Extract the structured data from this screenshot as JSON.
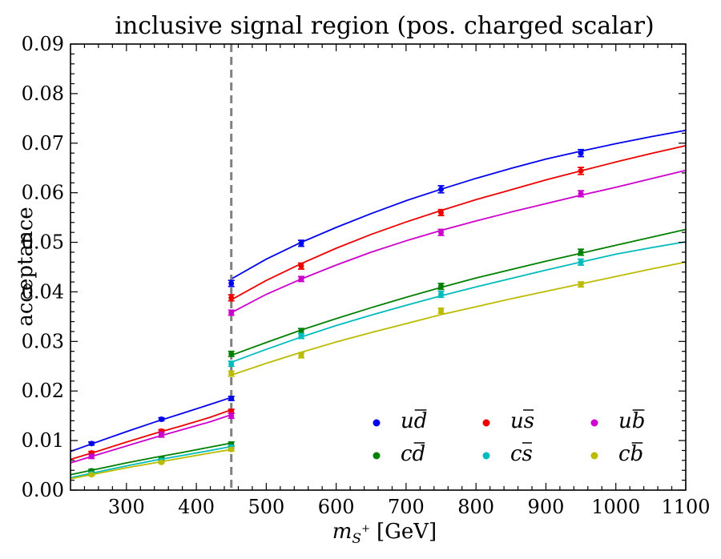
{
  "chart_data": {
    "type": "scatter",
    "title": "inclusive signal region (pos. charged scalar)",
    "xlabel_base": "m",
    "xlabel_sub": "S",
    "xlabel_sup": "+",
    "xlabel_unit": "[GeV]",
    "ylabel": "acceptance",
    "xlim": [
      220,
      1100
    ],
    "ylim": [
      0.0,
      0.09
    ],
    "xticks": [
      300,
      400,
      500,
      600,
      700,
      800,
      900,
      1000,
      1100
    ],
    "yticks": [
      0.0,
      0.01,
      0.02,
      0.03,
      0.04,
      0.05,
      0.06,
      0.07,
      0.08,
      0.09
    ],
    "ytick_labels": [
      "0.00",
      "0.01",
      "0.02",
      "0.03",
      "0.04",
      "0.05",
      "0.06",
      "0.07",
      "0.08",
      "0.09"
    ],
    "vline": {
      "x": 450,
      "color": "#808080",
      "style": "dashed"
    },
    "legend_position": "lower-right",
    "series": [
      {
        "name_main": "ud",
        "name_bar": "d",
        "color": "#0000ee",
        "low": {
          "x": [
            250,
            350,
            450
          ],
          "y": [
            0.0094,
            0.0143,
            0.0185
          ],
          "err": [
            0.0003,
            0.0003,
            0.0004
          ],
          "fit_x": [
            220,
            260,
            300,
            340,
            380,
            420,
            450
          ],
          "fit_y": [
            0.0078,
            0.0098,
            0.0118,
            0.0137,
            0.0155,
            0.0173,
            0.0187
          ]
        },
        "high": {
          "x": [
            450,
            550,
            750,
            950
          ],
          "y": [
            0.0417,
            0.0498,
            0.0607,
            0.068
          ],
          "err": [
            0.0006,
            0.0006,
            0.0007,
            0.0007
          ],
          "fit_x": [
            450,
            500,
            550,
            600,
            650,
            700,
            750,
            800,
            850,
            900,
            950,
            1000,
            1050,
            1100
          ],
          "fit_y": [
            0.0426,
            0.0466,
            0.05,
            0.053,
            0.0558,
            0.0584,
            0.0607,
            0.0629,
            0.0649,
            0.0668,
            0.0684,
            0.0699,
            0.0713,
            0.0726
          ]
        }
      },
      {
        "name_main": "us",
        "name_bar": "s",
        "color": "#ee0000",
        "low": {
          "x": [
            250,
            350,
            450
          ],
          "y": [
            0.0075,
            0.0119,
            0.0159
          ],
          "err": [
            0.0003,
            0.0003,
            0.0004
          ],
          "fit_x": [
            220,
            260,
            300,
            340,
            380,
            420,
            450
          ],
          "fit_y": [
            0.0062,
            0.0079,
            0.0097,
            0.0114,
            0.013,
            0.0147,
            0.0162
          ]
        },
        "high": {
          "x": [
            450,
            550,
            750,
            950
          ],
          "y": [
            0.0388,
            0.0452,
            0.056,
            0.0644
          ],
          "err": [
            0.0006,
            0.0006,
            0.0006,
            0.0007
          ],
          "fit_x": [
            450,
            500,
            550,
            600,
            650,
            700,
            750,
            800,
            850,
            900,
            950,
            1000,
            1050,
            1100
          ],
          "fit_y": [
            0.0384,
            0.0423,
            0.0457,
            0.0488,
            0.0516,
            0.0541,
            0.0564,
            0.0586,
            0.0606,
            0.0626,
            0.0644,
            0.0662,
            0.0679,
            0.0695
          ]
        }
      },
      {
        "name_main": "ub",
        "name_bar": "b",
        "color": "#cc00cc",
        "low": {
          "x": [
            250,
            350,
            450
          ],
          "y": [
            0.0068,
            0.0112,
            0.015
          ],
          "err": [
            0.0004,
            0.0005,
            0.0005
          ],
          "fit_x": [
            220,
            260,
            300,
            340,
            380,
            420,
            450
          ],
          "fit_y": [
            0.0055,
            0.0072,
            0.0089,
            0.0106,
            0.0122,
            0.0138,
            0.0152
          ]
        },
        "high": {
          "x": [
            450,
            550,
            750,
            950
          ],
          "y": [
            0.0358,
            0.0426,
            0.052,
            0.0598
          ],
          "err": [
            0.0005,
            0.0005,
            0.0006,
            0.0006
          ],
          "fit_x": [
            450,
            500,
            550,
            600,
            650,
            700,
            750,
            800,
            850,
            900,
            950,
            1000,
            1050,
            1100
          ],
          "fit_y": [
            0.0358,
            0.0395,
            0.0426,
            0.0454,
            0.048,
            0.0503,
            0.0524,
            0.0543,
            0.0561,
            0.0578,
            0.0595,
            0.0611,
            0.0628,
            0.0645
          ]
        }
      },
      {
        "name_main": "cd",
        "name_bar": "d",
        "color": "#008000",
        "low": {
          "x": [
            250,
            350,
            450
          ],
          "y": [
            0.0039,
            0.0064,
            0.0093
          ],
          "err": [
            0.0003,
            0.0003,
            0.0004
          ],
          "fit_x": [
            220,
            260,
            300,
            340,
            380,
            420,
            450
          ],
          "fit_y": [
            0.0031,
            0.0043,
            0.0055,
            0.0066,
            0.0076,
            0.0087,
            0.0095
          ]
        },
        "high": {
          "x": [
            450,
            550,
            750,
            950
          ],
          "y": [
            0.0275,
            0.0321,
            0.0411,
            0.048
          ],
          "err": [
            0.0005,
            0.0005,
            0.0006,
            0.0006
          ],
          "fit_x": [
            450,
            500,
            550,
            600,
            650,
            700,
            750,
            800,
            850,
            900,
            950,
            1000,
            1050,
            1100
          ],
          "fit_y": [
            0.0272,
            0.0298,
            0.0323,
            0.0346,
            0.0368,
            0.0389,
            0.0409,
            0.0428,
            0.0445,
            0.0462,
            0.0478,
            0.0494,
            0.051,
            0.0526
          ]
        }
      },
      {
        "name_main": "cs",
        "name_bar": "s",
        "color": "#00bbbb",
        "low": {
          "x": [
            250,
            350,
            450
          ],
          "y": [
            0.0033,
            0.006,
            0.0087
          ],
          "err": [
            0.0003,
            0.0003,
            0.0003
          ],
          "fit_x": [
            220,
            260,
            300,
            340,
            380,
            420,
            450
          ],
          "fit_y": [
            0.0025,
            0.0037,
            0.0049,
            0.006,
            0.007,
            0.008,
            0.0088
          ]
        },
        "high": {
          "x": [
            450,
            550,
            750,
            950
          ],
          "y": [
            0.0255,
            0.0311,
            0.0395,
            0.046
          ],
          "err": [
            0.0005,
            0.0005,
            0.0006,
            0.0006
          ],
          "fit_x": [
            450,
            500,
            550,
            600,
            650,
            700,
            750,
            800,
            850,
            900,
            950,
            1000,
            1050,
            1100
          ],
          "fit_y": [
            0.0258,
            0.0284,
            0.0309,
            0.0332,
            0.0353,
            0.0373,
            0.0392,
            0.041,
            0.0427,
            0.0444,
            0.046,
            0.0476,
            0.0489,
            0.0501
          ]
        }
      },
      {
        "name_main": "cb",
        "name_bar": "b",
        "color": "#bbbb00",
        "low": {
          "x": [
            250,
            350,
            450
          ],
          "y": [
            0.0031,
            0.0056,
            0.0082
          ],
          "err": [
            0.0002,
            0.0002,
            0.0003
          ],
          "fit_x": [
            220,
            260,
            300,
            340,
            380,
            420,
            450
          ],
          "fit_y": [
            0.0023,
            0.0034,
            0.0045,
            0.0055,
            0.0065,
            0.0075,
            0.0082
          ]
        },
        "high": {
          "x": [
            450,
            550,
            750,
            950
          ],
          "y": [
            0.0235,
            0.0272,
            0.0362,
            0.0415
          ],
          "err": [
            0.0005,
            0.0005,
            0.0005,
            0.0005
          ],
          "fit_x": [
            450,
            500,
            550,
            600,
            650,
            700,
            750,
            800,
            850,
            900,
            950,
            1000,
            1050,
            1100
          ],
          "fit_y": [
            0.0232,
            0.0256,
            0.0278,
            0.0299,
            0.0318,
            0.0336,
            0.0354,
            0.037,
            0.0386,
            0.0401,
            0.0416,
            0.0431,
            0.0446,
            0.046
          ]
        }
      }
    ]
  }
}
